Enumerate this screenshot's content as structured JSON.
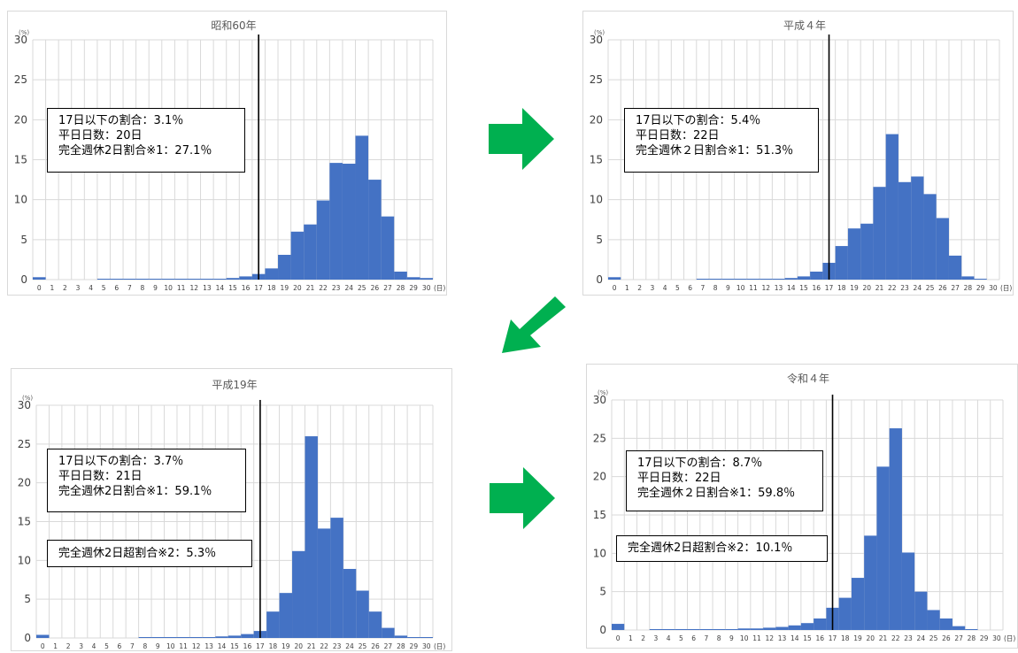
{
  "unit_label": "(%)",
  "x_unit_label": "(日)",
  "y_ticks": [
    "0",
    "5",
    "10",
    "15",
    "20",
    "25",
    "30"
  ],
  "x_ticks": [
    "0",
    "1",
    "2",
    "3",
    "4",
    "5",
    "6",
    "7",
    "8",
    "9",
    "10",
    "11",
    "12",
    "13",
    "14",
    "15",
    "16",
    "17",
    "18",
    "19",
    "20",
    "21",
    "22",
    "23",
    "24",
    "25",
    "26",
    "27",
    "28",
    "29",
    "30"
  ],
  "colors": {
    "bar": "#4472c4",
    "arrow": "#00b050",
    "grid": "#d9d9d9"
  },
  "icons": [
    "arrow-right-icon",
    "arrow-down-left-icon"
  ],
  "panels": [
    {
      "id": "s60",
      "title": "昭和60年",
      "box": [
        "17日以下の割合：3.1％",
        "平日日数：20日",
        "完全週休2日割合※1：27.1％"
      ],
      "box2": null
    },
    {
      "id": "h4",
      "title": "平成４年",
      "box": [
        "17日以下の割合：5.4％",
        "平日日数：22日",
        "完全週休２日割合※1：51.3％"
      ],
      "box2": null
    },
    {
      "id": "h19",
      "title": "平成19年",
      "box": [
        "17日以下の割合：3.7％",
        "平日日数：21日",
        "完全週休2日割合※1：59.1％"
      ],
      "box2": "完全週休2日超割合※2：5.3％"
    },
    {
      "id": "r4",
      "title": "令和４年",
      "box": [
        "17日以下の割合：8.7％",
        "平日日数：22日",
        "完全週休２日割合※1：59.8％"
      ],
      "box2": "完全週休2日超割合※2：10.1％"
    }
  ],
  "chart_data": [
    {
      "type": "bar",
      "title": "昭和60年",
      "ylabel": "(%)",
      "xlabel": "(日)",
      "ylim": [
        0,
        30
      ],
      "grid": true,
      "categories": [
        0,
        1,
        2,
        3,
        4,
        5,
        6,
        7,
        8,
        9,
        10,
        11,
        12,
        13,
        14,
        15,
        16,
        17,
        18,
        19,
        20,
        21,
        22,
        23,
        24,
        25,
        26,
        27,
        28,
        29,
        30
      ],
      "values": [
        0.3,
        0,
        0,
        0,
        0,
        0.05,
        0.05,
        0.05,
        0.05,
        0.05,
        0.05,
        0.05,
        0.1,
        0.1,
        0.1,
        0.2,
        0.4,
        0.7,
        1.4,
        3.1,
        6.0,
        6.9,
        9.9,
        14.6,
        14.5,
        18.0,
        12.5,
        7.9,
        1.0,
        0.3,
        0.2
      ],
      "reference_line_x": 17.5
    },
    {
      "type": "bar",
      "title": "平成４年",
      "ylabel": "(%)",
      "xlabel": "(日)",
      "ylim": [
        0,
        30
      ],
      "grid": true,
      "categories": [
        0,
        1,
        2,
        3,
        4,
        5,
        6,
        7,
        8,
        9,
        10,
        11,
        12,
        13,
        14,
        15,
        16,
        17,
        18,
        19,
        20,
        21,
        22,
        23,
        24,
        25,
        26,
        27,
        28,
        29,
        30
      ],
      "values": [
        0.3,
        0,
        0,
        0,
        0,
        0,
        0,
        0.05,
        0.05,
        0.05,
        0.05,
        0.05,
        0.1,
        0.1,
        0.2,
        0.4,
        1.0,
        2.1,
        4.2,
        6.4,
        7.0,
        11.6,
        18.2,
        12.2,
        12.9,
        10.7,
        7.7,
        3.0,
        0.4,
        0.1,
        0
      ],
      "reference_line_x": 17.5
    },
    {
      "type": "bar",
      "title": "平成19年",
      "ylabel": "(%)",
      "xlabel": "(日)",
      "ylim": [
        0,
        30
      ],
      "grid": true,
      "categories": [
        0,
        1,
        2,
        3,
        4,
        5,
        6,
        7,
        8,
        9,
        10,
        11,
        12,
        13,
        14,
        15,
        16,
        17,
        18,
        19,
        20,
        21,
        22,
        23,
        24,
        25,
        26,
        27,
        28,
        29,
        30
      ],
      "values": [
        0.4,
        0,
        0,
        0,
        0,
        0,
        0,
        0,
        0.05,
        0.05,
        0.05,
        0.05,
        0.05,
        0.1,
        0.2,
        0.3,
        0.5,
        0.9,
        3.4,
        5.8,
        11.2,
        26.0,
        14.1,
        15.5,
        8.9,
        6.1,
        3.4,
        1.3,
        0.3,
        0.1,
        0.1
      ],
      "reference_line_x": 17.5
    },
    {
      "type": "bar",
      "title": "令和４年",
      "ylabel": "(%)",
      "xlabel": "(日)",
      "ylim": [
        0,
        30
      ],
      "grid": true,
      "categories": [
        0,
        1,
        2,
        3,
        4,
        5,
        6,
        7,
        8,
        9,
        10,
        11,
        12,
        13,
        14,
        15,
        16,
        17,
        18,
        19,
        20,
        21,
        22,
        23,
        24,
        25,
        26,
        27,
        28,
        29,
        30
      ],
      "values": [
        0.8,
        0,
        0,
        0.1,
        0.1,
        0.1,
        0.1,
        0.1,
        0.1,
        0.1,
        0.2,
        0.2,
        0.3,
        0.4,
        0.6,
        0.9,
        1.5,
        2.9,
        4.2,
        6.8,
        12.3,
        21.3,
        26.3,
        10.1,
        5.0,
        2.6,
        1.5,
        0.5,
        0.1,
        0,
        0
      ],
      "reference_line_x": 17.5
    }
  ]
}
